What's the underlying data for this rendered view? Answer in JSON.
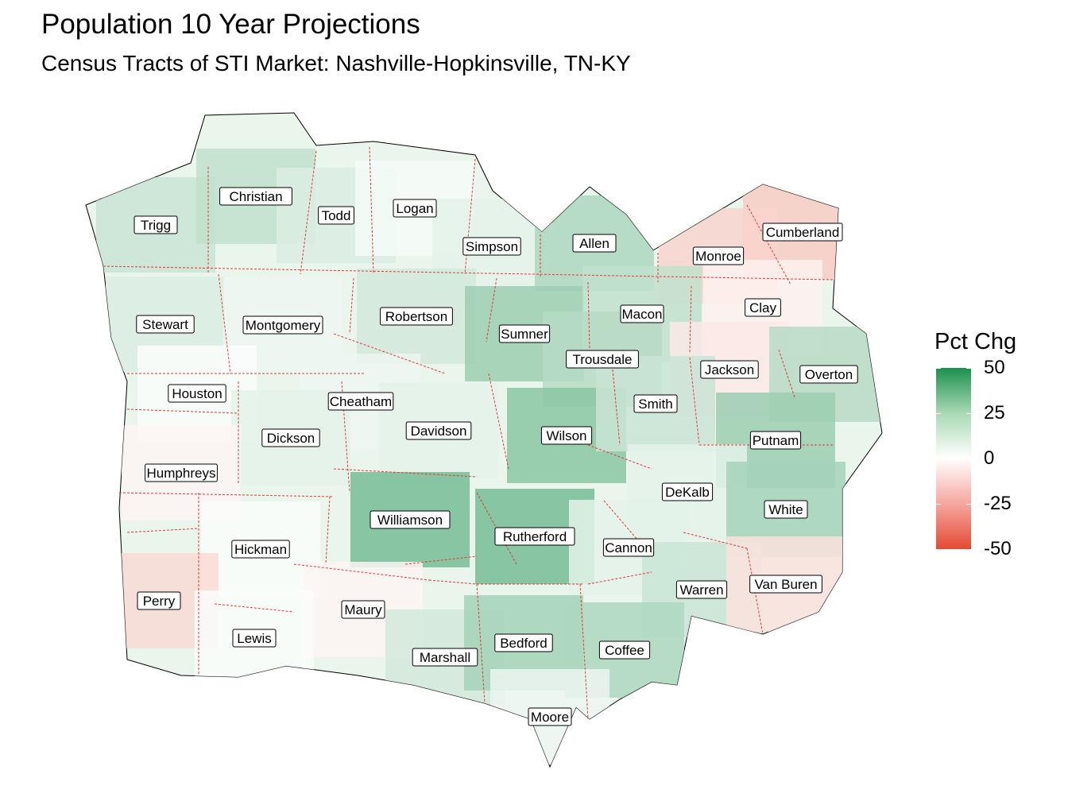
{
  "title": "Population 10 Year Projections",
  "subtitle": "Census Tracts of STI Market: Nashville-Hopkinsville, TN-KY",
  "legend": {
    "title": "Pct Chg",
    "ticks": [
      "50",
      "25",
      "0",
      "-25",
      "-50"
    ],
    "range": [
      -50,
      50
    ],
    "colors": {
      "high": "#1d8f4e",
      "mid": "#ffffff",
      "low": "#e34a33"
    }
  },
  "counties": [
    {
      "name": "Trigg",
      "pct_chg": 12
    },
    {
      "name": "Christian",
      "pct_chg": 14
    },
    {
      "name": "Todd",
      "pct_chg": 8
    },
    {
      "name": "Logan",
      "pct_chg": 2
    },
    {
      "name": "Simpson",
      "pct_chg": 6
    },
    {
      "name": "Allen",
      "pct_chg": 18
    },
    {
      "name": "Cumberland",
      "pct_chg": -14
    },
    {
      "name": "Monroe",
      "pct_chg": -12
    },
    {
      "name": "Stewart",
      "pct_chg": 8
    },
    {
      "name": "Montgomery",
      "pct_chg": 4
    },
    {
      "name": "Robertson",
      "pct_chg": 10
    },
    {
      "name": "Sumner",
      "pct_chg": 22
    },
    {
      "name": "Macon",
      "pct_chg": 14
    },
    {
      "name": "Clay",
      "pct_chg": -4
    },
    {
      "name": "Trousdale",
      "pct_chg": 16
    },
    {
      "name": "Jackson",
      "pct_chg": -6
    },
    {
      "name": "Overton",
      "pct_chg": 16
    },
    {
      "name": "Houston",
      "pct_chg": 1
    },
    {
      "name": "Cheatham",
      "pct_chg": 4
    },
    {
      "name": "Davidson",
      "pct_chg": 6
    },
    {
      "name": "Wilson",
      "pct_chg": 26
    },
    {
      "name": "Smith",
      "pct_chg": 12
    },
    {
      "name": "Dickson",
      "pct_chg": 6
    },
    {
      "name": "Putnam",
      "pct_chg": 22
    },
    {
      "name": "Humphreys",
      "pct_chg": -3
    },
    {
      "name": "DeKalb",
      "pct_chg": 6
    },
    {
      "name": "White",
      "pct_chg": 20
    },
    {
      "name": "Williamson",
      "pct_chg": 30
    },
    {
      "name": "Rutherford",
      "pct_chg": 30
    },
    {
      "name": "Hickman",
      "pct_chg": 1
    },
    {
      "name": "Cannon",
      "pct_chg": 6
    },
    {
      "name": "Perry",
      "pct_chg": -10
    },
    {
      "name": "Warren",
      "pct_chg": 12
    },
    {
      "name": "Van Buren",
      "pct_chg": -8
    },
    {
      "name": "Maury",
      "pct_chg": -3
    },
    {
      "name": "Lewis",
      "pct_chg": 1
    },
    {
      "name": "Marshall",
      "pct_chg": 10
    },
    {
      "name": "Bedford",
      "pct_chg": 20
    },
    {
      "name": "Coffee",
      "pct_chg": 18
    },
    {
      "name": "Moore",
      "pct_chg": 4
    }
  ]
}
